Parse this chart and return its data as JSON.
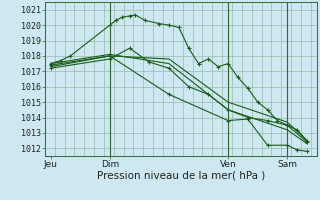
{
  "title": "",
  "xlabel": "Pression niveau de la mer( hPa )",
  "ylim": [
    1011.5,
    1021.5
  ],
  "yticks": [
    1012,
    1013,
    1014,
    1015,
    1016,
    1017,
    1018,
    1019,
    1020,
    1021
  ],
  "xtick_labels": [
    "Jeu",
    "Dim",
    "Ven",
    "Sam"
  ],
  "xtick_positions": [
    0,
    3,
    9,
    12
  ],
  "bg_color": "#cde8f0",
  "grid_color": "#99bbaa",
  "line_color": "#1a5c1a",
  "lines": [
    {
      "x": [
        0,
        0.5,
        1,
        3,
        3.3,
        3.6,
        4,
        4.3,
        4.8,
        5.5,
        6,
        6.5,
        7,
        7.5,
        8,
        8.5,
        9,
        9.5,
        10,
        10.5,
        11,
        11.5,
        12,
        12.5,
        13
      ],
      "y": [
        1017.5,
        1017.7,
        1018.0,
        1020.0,
        1020.3,
        1020.5,
        1020.6,
        1020.65,
        1020.3,
        1020.1,
        1020.0,
        1019.85,
        1018.5,
        1017.5,
        1017.8,
        1017.3,
        1017.5,
        1016.6,
        1015.9,
        1015.0,
        1014.5,
        1013.8,
        1013.5,
        1013.2,
        1012.5
      ],
      "has_marker": true
    },
    {
      "x": [
        0,
        3,
        6,
        9,
        12,
        13
      ],
      "y": [
        1017.3,
        1018.0,
        1017.8,
        1015.0,
        1013.7,
        1012.5
      ],
      "has_marker": false
    },
    {
      "x": [
        0,
        3,
        6,
        9,
        12,
        13
      ],
      "y": [
        1017.5,
        1018.1,
        1017.5,
        1014.5,
        1013.2,
        1012.3
      ],
      "has_marker": false
    },
    {
      "x": [
        0,
        3,
        4,
        5,
        6,
        7,
        8,
        9,
        10,
        11,
        12,
        13
      ],
      "y": [
        1017.2,
        1017.8,
        1018.5,
        1017.6,
        1017.2,
        1016.0,
        1015.5,
        1014.5,
        1014.0,
        1013.8,
        1013.5,
        1012.4
      ],
      "has_marker": true
    },
    {
      "x": [
        0,
        3,
        6,
        9,
        10,
        11,
        12,
        12.5,
        13
      ],
      "y": [
        1017.4,
        1018.0,
        1015.5,
        1013.8,
        1013.9,
        1012.2,
        1012.2,
        1011.9,
        1011.8
      ],
      "has_marker": true
    }
  ],
  "vlines": [
    3,
    9,
    12
  ],
  "fontsize_xlabel": 7.5,
  "fontsize_ytick": 6,
  "fontsize_xtick": 6.5,
  "xlim": [
    -0.3,
    13.5
  ]
}
